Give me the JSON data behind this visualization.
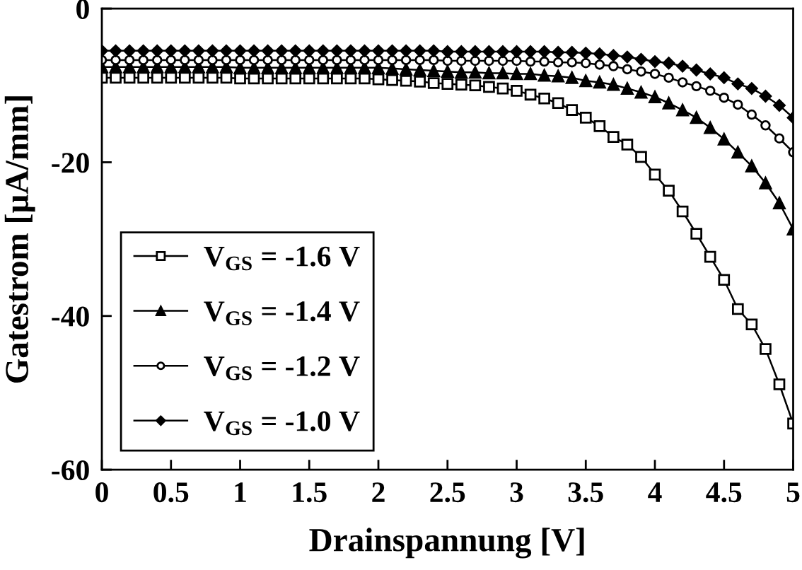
{
  "chart_data": {
    "type": "line",
    "xlabel": "Drainspannung [V]",
    "ylabel": "Gatestrom [µA/mm]",
    "x": [
      0,
      0.1,
      0.2,
      0.3,
      0.4,
      0.5,
      0.6,
      0.7,
      0.8,
      0.9,
      1.0,
      1.1,
      1.2,
      1.3,
      1.4,
      1.5,
      1.6,
      1.7,
      1.8,
      1.9,
      2.0,
      2.1,
      2.2,
      2.3,
      2.4,
      2.5,
      2.6,
      2.7,
      2.8,
      2.9,
      3.0,
      3.1,
      3.2,
      3.3,
      3.4,
      3.5,
      3.6,
      3.7,
      3.8,
      3.9,
      4.0,
      4.1,
      4.2,
      4.3,
      4.4,
      4.5,
      4.6,
      4.7,
      4.8,
      4.9,
      5.0
    ],
    "series": [
      {
        "name": "V$_{GS}$ = -1.6 V",
        "color": "#000000",
        "marker": "square",
        "values": [
          -9.0,
          -9.0,
          -9.0,
          -9.0,
          -9.0,
          -9.0,
          -9.0,
          -9.0,
          -9.0,
          -9.0,
          -9.1,
          -9.1,
          -9.1,
          -9.1,
          -9.1,
          -9.1,
          -9.1,
          -9.1,
          -9.1,
          -9.1,
          -9.2,
          -9.3,
          -9.4,
          -9.5,
          -9.7,
          -9.8,
          -9.9,
          -10.0,
          -10.2,
          -10.4,
          -10.7,
          -11.2,
          -11.7,
          -12.3,
          -13.2,
          -14.2,
          -15.3,
          -16.7,
          -17.7,
          -19.3,
          -21.6,
          -23.7,
          -26.4,
          -29.3,
          -32.3,
          -35.3,
          -39.1,
          -41.1,
          -44.3,
          -48.9,
          -54.0
        ]
      },
      {
        "name": "V$_{GS}$ = -1.4 V",
        "color": "#000000",
        "marker": "triangle",
        "values": [
          -7.6,
          -7.6,
          -7.6,
          -7.6,
          -7.6,
          -7.6,
          -7.6,
          -7.6,
          -7.6,
          -7.6,
          -7.7,
          -7.7,
          -7.7,
          -7.7,
          -7.7,
          -7.7,
          -7.7,
          -7.7,
          -7.7,
          -7.7,
          -7.7,
          -7.8,
          -7.9,
          -8.0,
          -8.1,
          -8.2,
          -8.3,
          -8.3,
          -8.4,
          -8.4,
          -8.5,
          -8.5,
          -8.7,
          -8.8,
          -9.0,
          -9.4,
          -9.6,
          -9.9,
          -10.4,
          -10.9,
          -11.5,
          -12.3,
          -13.2,
          -14.2,
          -15.5,
          -17.0,
          -18.7,
          -20.5,
          -22.7,
          -25.3,
          -28.7
        ]
      },
      {
        "name": "V$_{GS}$ = -1.2 V",
        "color": "#000000",
        "marker": "circle",
        "values": [
          -6.7,
          -6.7,
          -6.7,
          -6.7,
          -6.7,
          -6.7,
          -6.7,
          -6.7,
          -6.7,
          -6.7,
          -6.7,
          -6.7,
          -6.7,
          -6.7,
          -6.7,
          -6.7,
          -6.7,
          -6.7,
          -6.7,
          -6.7,
          -6.7,
          -6.7,
          -6.7,
          -6.7,
          -6.7,
          -6.8,
          -6.8,
          -6.8,
          -6.8,
          -6.8,
          -6.8,
          -6.9,
          -6.9,
          -7.0,
          -7.0,
          -7.1,
          -7.3,
          -7.5,
          -7.9,
          -8.2,
          -8.5,
          -9.0,
          -9.6,
          -10.1,
          -10.7,
          -11.6,
          -12.5,
          -13.8,
          -15.2,
          -16.9,
          -18.7
        ]
      },
      {
        "name": "V$_{GS}$ = -1.0 V",
        "color": "#000000",
        "marker": "diamond",
        "values": [
          -5.5,
          -5.5,
          -5.5,
          -5.5,
          -5.5,
          -5.5,
          -5.5,
          -5.5,
          -5.5,
          -5.5,
          -5.5,
          -5.5,
          -5.5,
          -5.5,
          -5.5,
          -5.5,
          -5.5,
          -5.5,
          -5.5,
          -5.5,
          -5.5,
          -5.5,
          -5.5,
          -5.5,
          -5.5,
          -5.6,
          -5.6,
          -5.6,
          -5.6,
          -5.6,
          -5.6,
          -5.6,
          -5.6,
          -5.7,
          -5.7,
          -5.8,
          -5.9,
          -6.1,
          -6.3,
          -6.6,
          -6.9,
          -7.1,
          -7.5,
          -8.0,
          -8.5,
          -9.0,
          -9.8,
          -10.4,
          -11.4,
          -12.6,
          -14.2
        ]
      }
    ],
    "xlim": [
      0,
      5
    ],
    "xticks": [
      0,
      0.5,
      1,
      1.5,
      2,
      2.5,
      3,
      3.5,
      4,
      4.5,
      5
    ],
    "ylim": [
      -60,
      0
    ],
    "yticks": [
      -60,
      -40,
      -20,
      0
    ],
    "legend": "lower left",
    "line_style": "solid"
  }
}
